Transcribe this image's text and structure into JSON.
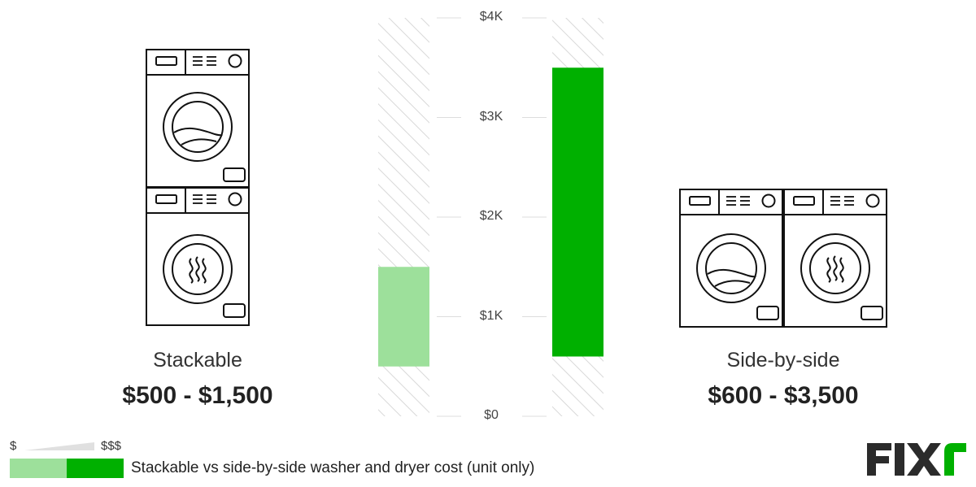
{
  "chart_data": {
    "type": "bar",
    "subtype": "floating-range",
    "categories": [
      "Stackable",
      "Side-by-side"
    ],
    "series": [
      {
        "category": "Stackable",
        "low": 500,
        "high": 1500,
        "label": "$500 - $1,500",
        "color": "#9de09b"
      },
      {
        "category": "Side-by-side",
        "low": 600,
        "high": 3500,
        "label": "$600 - $3,500",
        "color": "#00b000"
      }
    ],
    "ylim": [
      0,
      4000
    ],
    "yticks": [
      0,
      1000,
      2000,
      3000,
      4000
    ],
    "ytick_labels": [
      "$0",
      "$1K",
      "$2K",
      "$3K",
      "$4K"
    ],
    "grid": false,
    "title": "",
    "xlabel": "",
    "ylabel": ""
  },
  "items": [
    {
      "name": "Stackable",
      "price": "$500 - $1,500",
      "icon": "stacked-washer-dryer-icon"
    },
    {
      "name": "Side-by-side",
      "price": "$600 - $3,500",
      "icon": "side-by-side-washer-dryer-icon"
    }
  ],
  "legend": {
    "low": "$",
    "high": "$$$",
    "caption": "Stackable vs side-by-side washer and dryer cost (unit only)",
    "colors": [
      "#9de09b",
      "#00b000"
    ]
  },
  "logo": {
    "text": "FIXr",
    "colors": [
      "#2b2b2b",
      "#00b000"
    ]
  }
}
